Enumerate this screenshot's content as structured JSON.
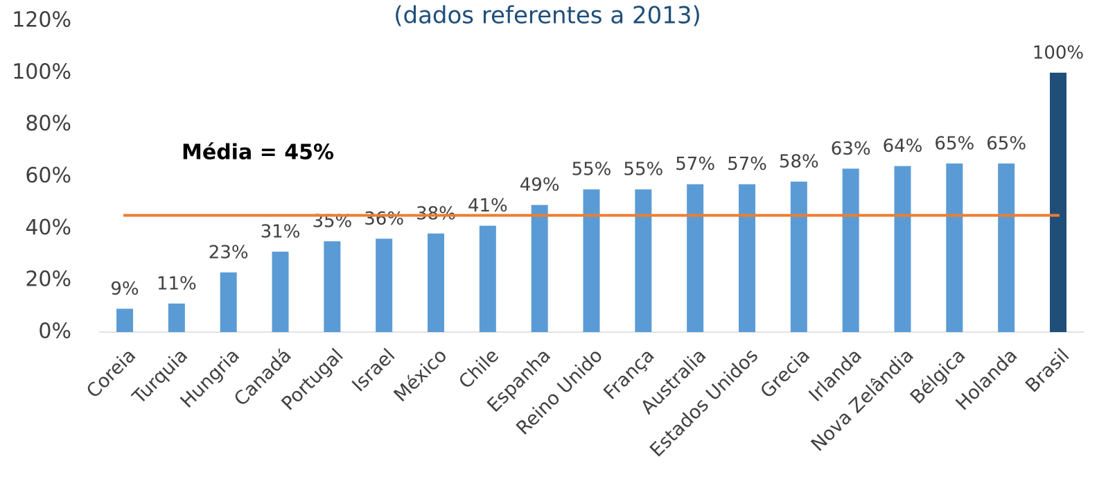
{
  "chart_data": {
    "type": "bar",
    "subtitle": "(dados referentes a 2013)",
    "categories": [
      "Coreia",
      "Turquia",
      "Hungria",
      "Canadá",
      "Portugal",
      "Israel",
      "México",
      "Chile",
      "Espanha",
      "Reino Unido",
      "França",
      "Australia",
      "Estados Unidos",
      "Grecia",
      "Irlanda",
      "Nova Zelândia",
      "Bélgica",
      "Holanda",
      "Brasil"
    ],
    "values": [
      9,
      11,
      23,
      31,
      35,
      36,
      38,
      41,
      49,
      55,
      55,
      57,
      57,
      58,
      63,
      64,
      65,
      65,
      100
    ],
    "value_labels": [
      "9%",
      "11%",
      "23%",
      "31%",
      "35%",
      "36%",
      "38%",
      "41%",
      "49%",
      "55%",
      "55%",
      "57%",
      "57%",
      "58%",
      "63%",
      "64%",
      "65%",
      "65%",
      "100%"
    ],
    "colors": [
      "#5b9bd5",
      "#5b9bd5",
      "#5b9bd5",
      "#5b9bd5",
      "#5b9bd5",
      "#5b9bd5",
      "#5b9bd5",
      "#5b9bd5",
      "#5b9bd5",
      "#5b9bd5",
      "#5b9bd5",
      "#5b9bd5",
      "#5b9bd5",
      "#5b9bd5",
      "#5b9bd5",
      "#5b9bd5",
      "#5b9bd5",
      "#5b9bd5",
      "#1f4e79"
    ],
    "average": {
      "value": 45,
      "label": "Média = 45%",
      "color": "#ed7d31"
    },
    "ylim": [
      0,
      120
    ],
    "yticks": [
      {
        "value": 0,
        "label": "0%"
      },
      {
        "value": 20,
        "label": "20%"
      },
      {
        "value": 40,
        "label": "40%"
      },
      {
        "value": 60,
        "label": "60%"
      },
      {
        "value": 80,
        "label": "80%"
      },
      {
        "value": 100,
        "label": "100%"
      },
      {
        "value": 120,
        "label": "120%"
      }
    ],
    "grid": false
  }
}
